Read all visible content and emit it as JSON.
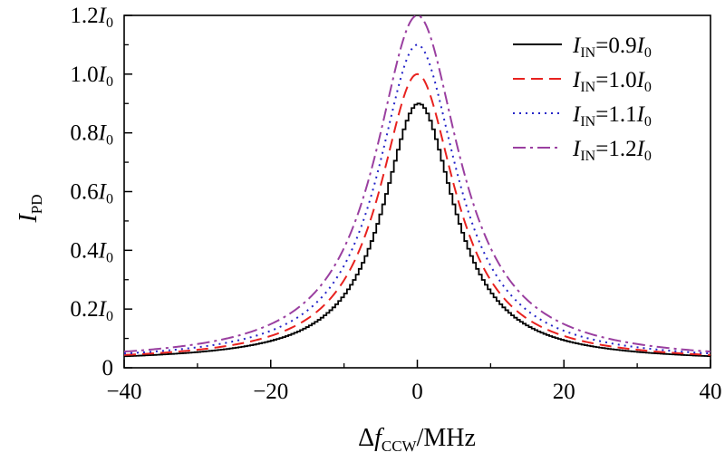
{
  "chart_data": {
    "type": "line",
    "title": "",
    "xlabel": {
      "prefix": "Δ",
      "var": "f",
      "sub": "CCW",
      "suffix": "/MHz"
    },
    "ylabel": {
      "var": "I",
      "sub": "PD"
    },
    "xlim": [
      -40,
      40
    ],
    "ylim": [
      0,
      1.2
    ],
    "x_ticks": [
      {
        "value": -40,
        "label": "−40"
      },
      {
        "value": -20,
        "label": "−20"
      },
      {
        "value": 0,
        "label": "0"
      },
      {
        "value": 20,
        "label": "20"
      },
      {
        "value": 40,
        "label": "40"
      }
    ],
    "y_ticks": [
      {
        "value": 0,
        "num": "0",
        "unit": ""
      },
      {
        "value": 0.2,
        "num": "0.2",
        "unit": "I",
        "sub": "0"
      },
      {
        "value": 0.4,
        "num": "0.4",
        "unit": "I",
        "sub": "0"
      },
      {
        "value": 0.6,
        "num": "0.6",
        "unit": "I",
        "sub": "0"
      },
      {
        "value": 0.8,
        "num": "0.8",
        "unit": "I",
        "sub": "0"
      },
      {
        "value": 1.0,
        "num": "1.0",
        "unit": "I",
        "sub": "0"
      },
      {
        "value": 1.2,
        "num": "1.2",
        "unit": "I",
        "sub": "0"
      }
    ],
    "legend_position": "top-right",
    "series": [
      {
        "name": "I_IN=0.9I_0",
        "label": {
          "var": "I",
          "sub": "IN",
          "eq": "=0.9",
          "unit": "I",
          "unitsub": "0"
        },
        "peak": 0.9,
        "hwhm": 6.0,
        "color": "#000000",
        "dash": "none",
        "step": true
      },
      {
        "name": "I_IN=1.0I_0",
        "label": {
          "var": "I",
          "sub": "IN",
          "eq": "=1.0",
          "unit": "I",
          "unitsub": "0"
        },
        "peak": 1.0,
        "hwhm": 6.3,
        "color": "#e8221f",
        "dash": "13,7",
        "step": false
      },
      {
        "name": "I_IN=1.1I_0",
        "label": {
          "var": "I",
          "sub": "IN",
          "eq": "=1.1",
          "unit": "I",
          "unitsub": "0"
        },
        "peak": 1.1,
        "hwhm": 6.6,
        "color": "#2424c8",
        "dash": "2,5",
        "step": false
      },
      {
        "name": "I_IN=1.2I_0",
        "label": {
          "var": "I",
          "sub": "IN",
          "eq": "=1.2",
          "unit": "I",
          "unitsub": "0"
        },
        "peak": 1.2,
        "hwhm": 7.0,
        "color": "#9a3fa0",
        "dash": "14,5,3,5",
        "step": false
      }
    ]
  }
}
